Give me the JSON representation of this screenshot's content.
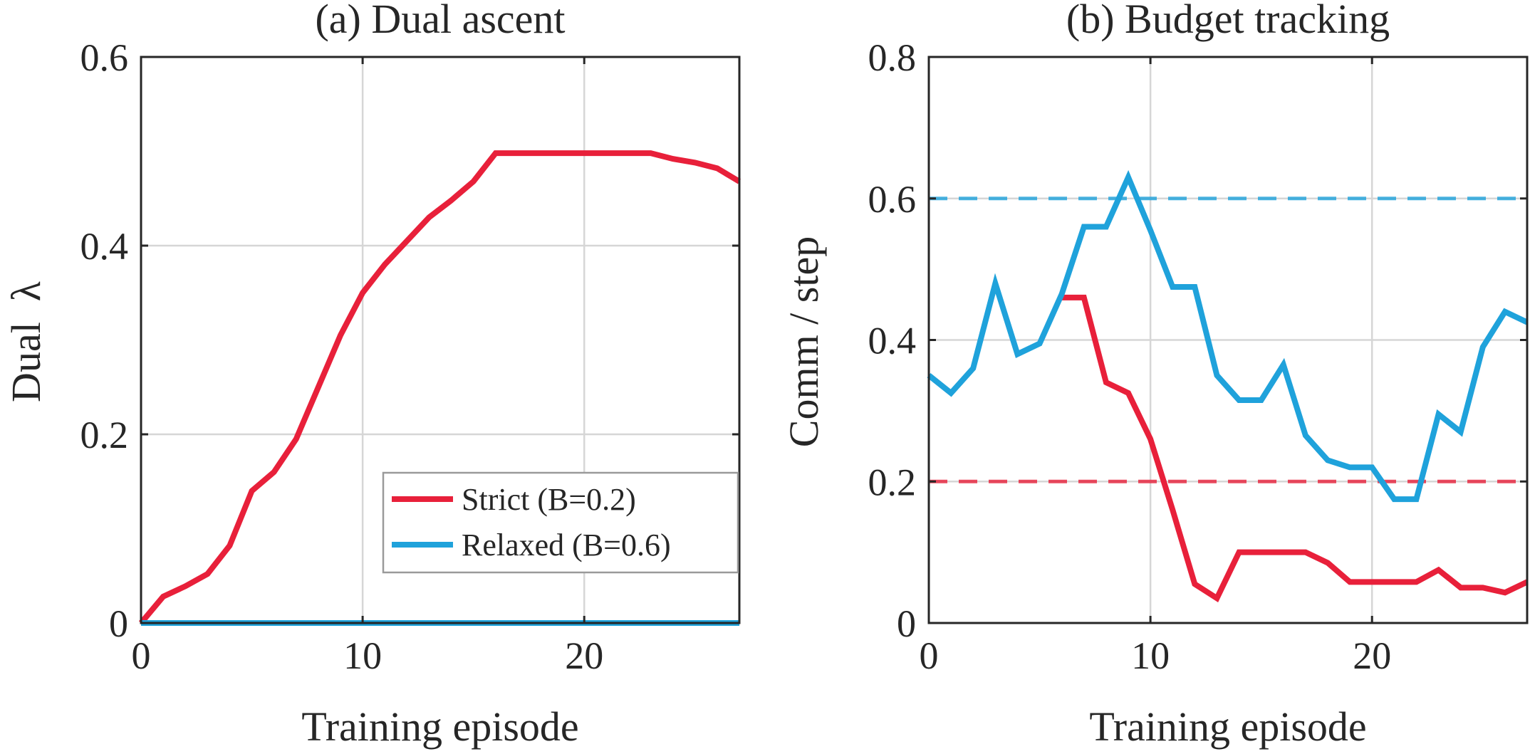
{
  "chart_data": [
    {
      "type": "line",
      "title": "(a) Dual ascent",
      "xlabel": "Training episode",
      "ylabel": "Dual  λ",
      "xlim": [
        0,
        27
      ],
      "ylim": [
        0,
        0.6
      ],
      "xticks": [
        0,
        10,
        20
      ],
      "yticks": [
        0,
        0.2,
        0.4,
        0.6
      ],
      "xtick_labels": [
        "0",
        "10",
        "20"
      ],
      "ytick_labels": [
        "0",
        "0.2",
        "0.4",
        "0.6"
      ],
      "grid": true,
      "legend_placement": "bottom-right",
      "x": [
        0,
        1,
        2,
        3,
        4,
        5,
        6,
        7,
        8,
        9,
        10,
        11,
        12,
        13,
        14,
        15,
        16,
        17,
        18,
        19,
        20,
        21,
        22,
        23,
        24,
        25,
        26,
        27
      ],
      "series": [
        {
          "name": "Strict (B=0.2)",
          "color": "#e8203a",
          "values": [
            0,
            0.028,
            0.039,
            0.052,
            0.082,
            0.14,
            0.16,
            0.195,
            0.25,
            0.305,
            0.35,
            0.38,
            0.405,
            0.43,
            0.448,
            0.468,
            0.498,
            0.498,
            0.498,
            0.498,
            0.498,
            0.498,
            0.498,
            0.498,
            0.492,
            0.488,
            0.482,
            0.468
          ]
        },
        {
          "name": "Relaxed (B=0.6)",
          "color": "#1fa2db",
          "values": [
            0,
            0,
            0,
            0,
            0,
            0,
            0,
            0,
            0,
            0,
            0,
            0,
            0,
            0,
            0,
            0,
            0,
            0,
            0,
            0,
            0,
            0,
            0,
            0,
            0,
            0,
            0,
            0
          ]
        }
      ]
    },
    {
      "type": "line",
      "title": "(b) Budget tracking",
      "xlabel": "Training episode",
      "ylabel": "Comm / step",
      "xlim": [
        0,
        27
      ],
      "ylim": [
        0,
        0.8
      ],
      "xticks": [
        0,
        10,
        20
      ],
      "yticks": [
        0,
        0.2,
        0.4,
        0.6,
        0.8
      ],
      "xtick_labels": [
        "0",
        "10",
        "20"
      ],
      "ytick_labels": [
        "0",
        "0.2",
        "0.4",
        "0.6",
        "0.8"
      ],
      "grid": true,
      "reference_lines": [
        {
          "y": 0.6,
          "color": "#1fa2db",
          "style": "dashed"
        },
        {
          "y": 0.2,
          "color": "#e8203a",
          "style": "dashed"
        }
      ],
      "x": [
        0,
        1,
        2,
        3,
        4,
        5,
        6,
        7,
        8,
        9,
        10,
        11,
        12,
        13,
        14,
        15,
        16,
        17,
        18,
        19,
        20,
        21,
        22,
        23,
        24,
        25,
        26,
        27
      ],
      "series": [
        {
          "name": "Strict (B=0.2)",
          "color": "#e8203a",
          "x": [
            6,
            7,
            8,
            9,
            10,
            11,
            12,
            13,
            14,
            15,
            16,
            17,
            18,
            19,
            20,
            21,
            22,
            23,
            24,
            25,
            26,
            27
          ],
          "values": [
            0.46,
            0.46,
            0.34,
            0.325,
            0.26,
            0.16,
            0.055,
            0.035,
            0.1,
            0.1,
            0.1,
            0.1,
            0.085,
            0.058,
            0.058,
            0.058,
            0.058,
            0.075,
            0.05,
            0.05,
            0.043,
            0.058
          ]
        },
        {
          "name": "Relaxed (B=0.6)",
          "color": "#1fa2db",
          "values": [
            0.35,
            0.325,
            0.36,
            0.48,
            0.38,
            0.395,
            0.465,
            0.56,
            0.56,
            0.63,
            0.555,
            0.475,
            0.475,
            0.35,
            0.315,
            0.315,
            0.365,
            0.265,
            0.23,
            0.22,
            0.22,
            0.175,
            0.175,
            0.295,
            0.27,
            0.39,
            0.44,
            0.425
          ]
        }
      ]
    }
  ]
}
